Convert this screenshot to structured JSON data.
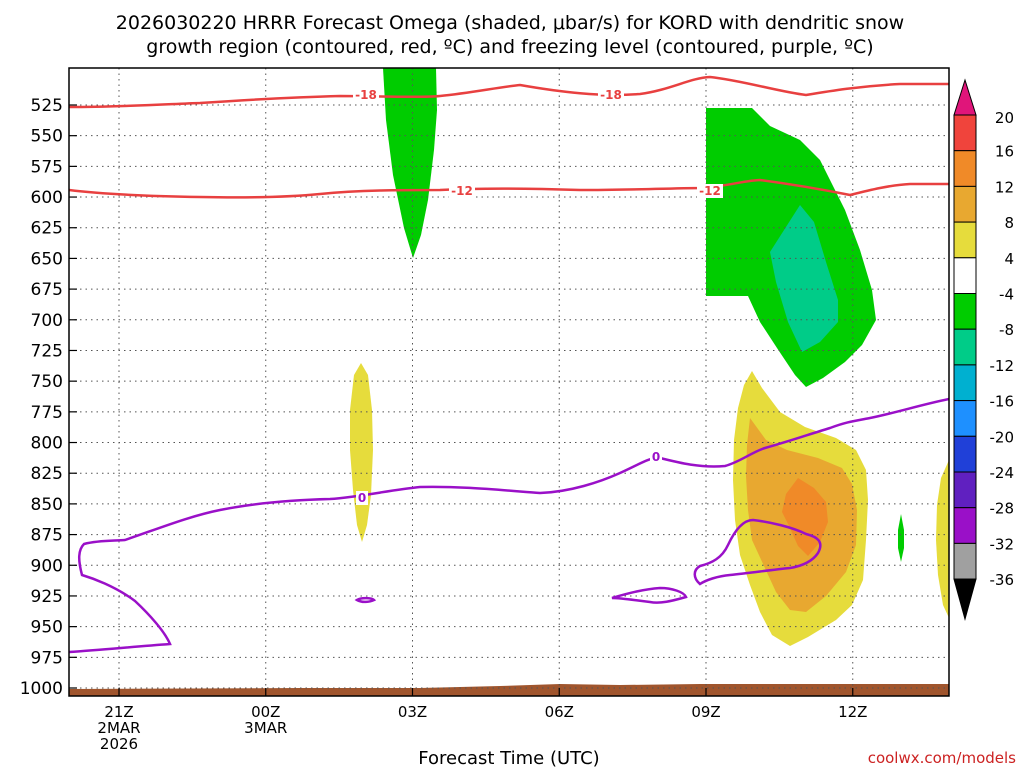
{
  "chart_data": {
    "type": "contour",
    "title_line1": "2026030220 HRRR Forecast Omega (shaded, μbar/s) for KORD with dendritic snow",
    "title_line2": "growth region (contoured, red, ºC) and freezing level (contoured, purple, ºC)",
    "xlabel": "Forecast Time (UTC)",
    "credit": "coolwx.com/models",
    "x_range_hours": [
      -1,
      14.3
    ],
    "y_range_mb": [
      1000,
      500
    ],
    "x_ticks": [
      {
        "hour": 0,
        "lines": [
          "21Z",
          "2MAR",
          "2026"
        ]
      },
      {
        "hour": 2.5,
        "lines": [
          "00Z",
          "3MAR"
        ]
      },
      {
        "hour": 5,
        "lines": [
          "03Z"
        ]
      },
      {
        "hour": 7.5,
        "lines": [
          "06Z"
        ]
      },
      {
        "hour": 10,
        "lines": [
          "09Z"
        ]
      },
      {
        "hour": 12.5,
        "lines": [
          "12Z"
        ]
      }
    ],
    "y_ticks": [
      525,
      550,
      575,
      600,
      625,
      650,
      675,
      700,
      725,
      750,
      775,
      800,
      825,
      850,
      875,
      900,
      925,
      950,
      975,
      1000
    ],
    "colorbar": {
      "levels": [
        "20",
        "16",
        "12",
        "8",
        "4",
        "-4",
        "-8",
        "-12",
        "-16",
        "-20",
        "-24",
        "-28",
        "-32",
        "-36"
      ],
      "colors": [
        "#e0157a",
        "#f0443c",
        "#f08a28",
        "#e8a830",
        "#e6dc3c",
        "#ffffff",
        "#00cc00",
        "#00cc88",
        "#00b0d0",
        "#1e90ff",
        "#2040d8",
        "#6020c0",
        "#9a10c8",
        "#a0a0a0",
        "#000000"
      ]
    },
    "contours": [
      {
        "name": "dgz-minus18",
        "label": "-18",
        "color": "#e84040"
      },
      {
        "name": "dgz-minus12",
        "label": "-12",
        "color": "#e84040"
      },
      {
        "name": "freezing-level",
        "label": "0",
        "color": "#9a10c8"
      }
    ],
    "shaded_regions": [
      {
        "name": "omega-green-03z",
        "value_range": [
          -8,
          -4
        ]
      },
      {
        "name": "omega-green-09z",
        "value_range": [
          -8,
          -4
        ]
      },
      {
        "name": "omega-teal-10z",
        "value_range": [
          -12,
          -8
        ]
      },
      {
        "name": "omega-yellow-02z",
        "value_range": [
          4,
          8
        ]
      },
      {
        "name": "omega-yellow-10z",
        "value_range": [
          4,
          8
        ]
      },
      {
        "name": "omega-gold-10z",
        "value_range": [
          8,
          12
        ]
      },
      {
        "name": "omega-orange-11z",
        "value_range": [
          12,
          16
        ]
      }
    ]
  }
}
